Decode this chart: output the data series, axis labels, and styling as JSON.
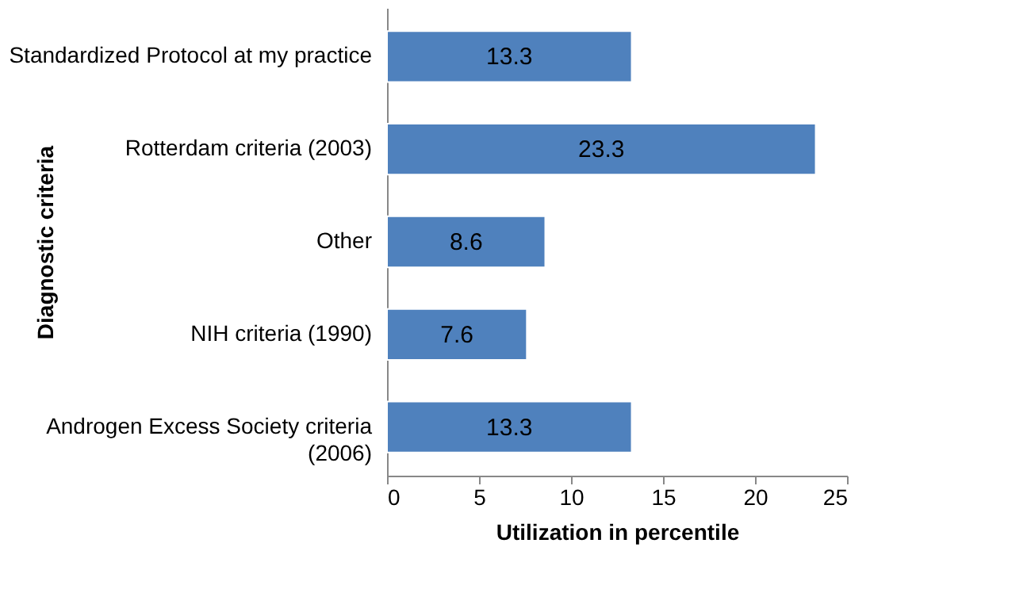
{
  "chart_data": {
    "type": "bar",
    "orientation": "horizontal",
    "xlabel": "Utilization in percentile",
    "ylabel": "Diagnostic criteria",
    "categories": [
      "Standardized Protocol at my practice",
      "Rotterdam criteria (2003)",
      "Other",
      "NIH criteria (1990)",
      "Androgen Excess Society criteria (2006)"
    ],
    "values": [
      13.3,
      23.3,
      8.6,
      7.6,
      13.3
    ],
    "color": "#4f81bd",
    "data_labels": true,
    "xlim": [
      0,
      25
    ],
    "xticks": [
      0,
      5,
      10,
      15,
      20,
      25
    ],
    "grid": false
  }
}
